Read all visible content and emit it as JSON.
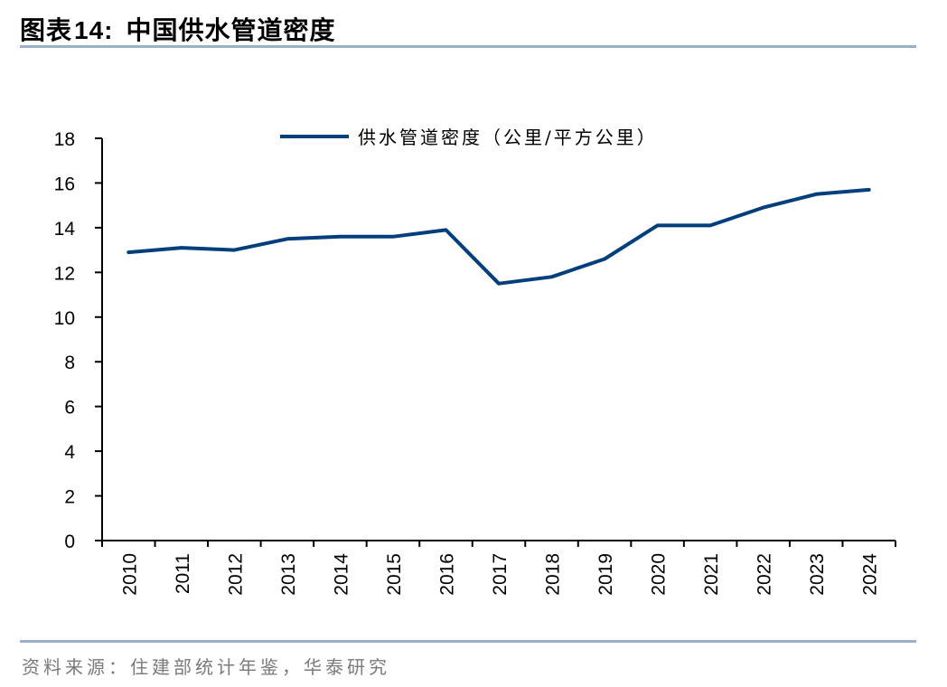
{
  "header": {
    "figure_label": "图表",
    "figure_number": "14:",
    "title": "中国供水管道密度"
  },
  "footer": {
    "source": "资料来源：住建部统计年鉴，华泰研究"
  },
  "colors": {
    "series_line": "#003E7E",
    "rule": "#9AB0C8",
    "axis": "#000000",
    "source_text": "#7a7a7a"
  },
  "chart_data": {
    "type": "line",
    "title": "中国供水管道密度",
    "xlabel": "",
    "ylabel": "",
    "categories": [
      "2010",
      "2011",
      "2012",
      "2013",
      "2014",
      "2015",
      "2016",
      "2017",
      "2018",
      "2019",
      "2020",
      "2021",
      "2022",
      "2023",
      "2024"
    ],
    "series": [
      {
        "name": "供水管道密度（公里/平方公里）",
        "values": [
          12.9,
          13.1,
          13.0,
          13.5,
          13.6,
          13.6,
          13.9,
          11.5,
          11.8,
          12.6,
          14.1,
          14.1,
          14.9,
          15.5,
          15.7
        ]
      }
    ],
    "ylim": [
      0,
      18
    ],
    "yticks": [
      0,
      2,
      4,
      6,
      8,
      10,
      12,
      14,
      16,
      18
    ],
    "grid": false,
    "legend_position": "top-center"
  }
}
